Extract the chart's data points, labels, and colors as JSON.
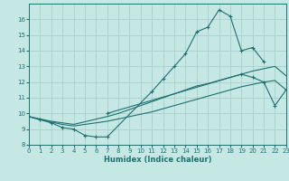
{
  "xlabel": "Humidex (Indice chaleur)",
  "xlim": [
    0,
    23
  ],
  "ylim": [
    8,
    17
  ],
  "yticks": [
    8,
    9,
    10,
    11,
    12,
    13,
    14,
    15,
    16
  ],
  "xticks": [
    0,
    1,
    2,
    3,
    4,
    5,
    6,
    7,
    8,
    9,
    10,
    11,
    12,
    13,
    14,
    15,
    16,
    17,
    18,
    19,
    20,
    21,
    22,
    23
  ],
  "bg_color": "#c6e8e5",
  "grid_color": "#a8d0cc",
  "line_color": "#1e7070",
  "line1": {
    "x": [
      0,
      1,
      2,
      3,
      4,
      5,
      6,
      7,
      11,
      12,
      13,
      14,
      15,
      16,
      17,
      18,
      19,
      20,
      21
    ],
    "y": [
      9.8,
      9.6,
      9.4,
      9.1,
      9.0,
      8.6,
      8.5,
      8.5,
      11.4,
      12.2,
      13.0,
      13.8,
      15.2,
      15.5,
      16.6,
      16.2,
      14.0,
      14.2,
      13.3
    ],
    "marker": true
  },
  "line2": {
    "x": [
      7,
      19,
      20,
      21,
      22,
      23
    ],
    "y": [
      10.0,
      12.5,
      12.3,
      12.0,
      10.5,
      11.5
    ],
    "marker": true
  },
  "line3": {
    "x": [
      0,
      1,
      2,
      3,
      4,
      7,
      8,
      9,
      10,
      11,
      12,
      13,
      14,
      15,
      16,
      17,
      18,
      19,
      20,
      21,
      22,
      23
    ],
    "y": [
      9.8,
      9.6,
      9.45,
      9.3,
      9.2,
      9.5,
      9.65,
      9.8,
      9.95,
      10.1,
      10.3,
      10.5,
      10.7,
      10.9,
      11.1,
      11.3,
      11.5,
      11.7,
      11.85,
      12.0,
      12.1,
      11.5
    ],
    "marker": false
  },
  "line4": {
    "x": [
      0,
      1,
      2,
      3,
      4,
      7,
      8,
      9,
      10,
      11,
      12,
      13,
      14,
      15,
      16,
      17,
      18,
      19,
      20,
      21,
      22,
      23
    ],
    "y": [
      9.8,
      9.65,
      9.5,
      9.4,
      9.3,
      9.8,
      10.0,
      10.25,
      10.5,
      10.75,
      11.0,
      11.25,
      11.5,
      11.75,
      11.9,
      12.1,
      12.3,
      12.5,
      12.7,
      12.85,
      13.0,
      12.4
    ],
    "marker": false
  },
  "figsize": [
    3.2,
    2.0
  ],
  "dpi": 100
}
